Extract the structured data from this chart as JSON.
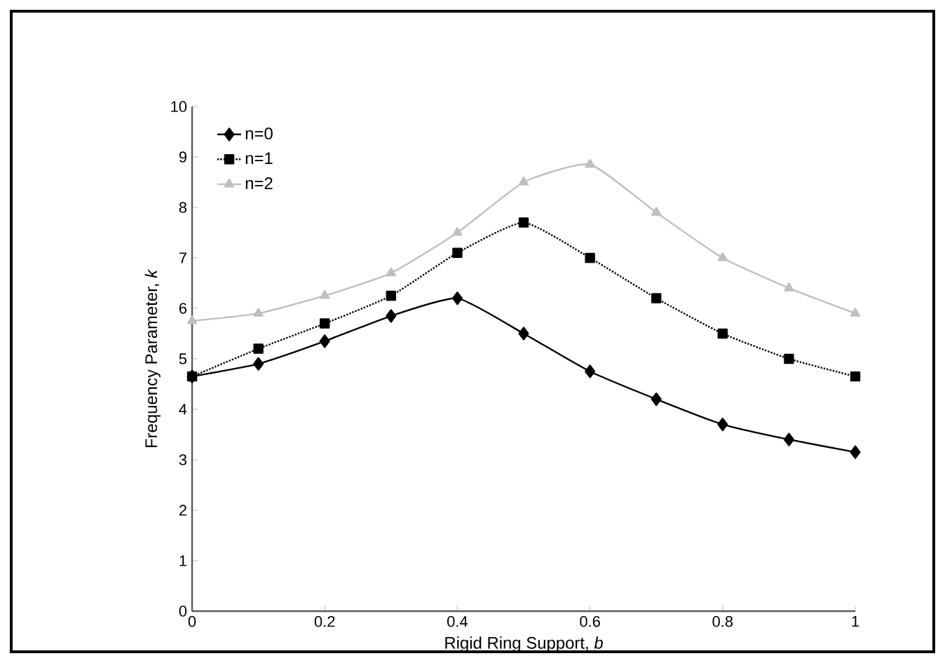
{
  "chart_data": {
    "type": "line",
    "xlabel": "Rigid Ring Support, *b*",
    "ylabel": "Frequency Parameter, *k*",
    "x": [
      0,
      0.1,
      0.2,
      0.3,
      0.4,
      0.5,
      0.6,
      0.7,
      0.8,
      0.9,
      1
    ],
    "series": [
      {
        "name": "n=0",
        "color": "#000000",
        "marker": "diamond",
        "line_style": "solid",
        "values": [
          4.65,
          4.9,
          5.35,
          5.85,
          6.2,
          5.5,
          4.75,
          4.2,
          3.7,
          3.4,
          3.15
        ]
      },
      {
        "name": "n=1",
        "color": "#000000",
        "marker": "square",
        "line_style": "dotted",
        "values": [
          4.65,
          5.2,
          5.7,
          6.25,
          7.1,
          7.7,
          7.0,
          6.2,
          5.5,
          5.0,
          4.65
        ]
      },
      {
        "name": "n=2",
        "color": "#bfbfbf",
        "marker": "triangle",
        "line_style": "solid",
        "values": [
          5.75,
          5.9,
          6.25,
          6.7,
          7.5,
          8.5,
          8.85,
          7.9,
          7.0,
          6.4,
          5.9
        ]
      }
    ],
    "xlim": [
      0,
      1
    ],
    "ylim": [
      0,
      10
    ],
    "xticks": [
      0,
      0.2,
      0.4,
      0.6,
      0.8,
      1
    ],
    "yticks": [
      0,
      1,
      2,
      3,
      4,
      5,
      6,
      7,
      8,
      9,
      10
    ],
    "legend": "top left",
    "grid": false
  }
}
